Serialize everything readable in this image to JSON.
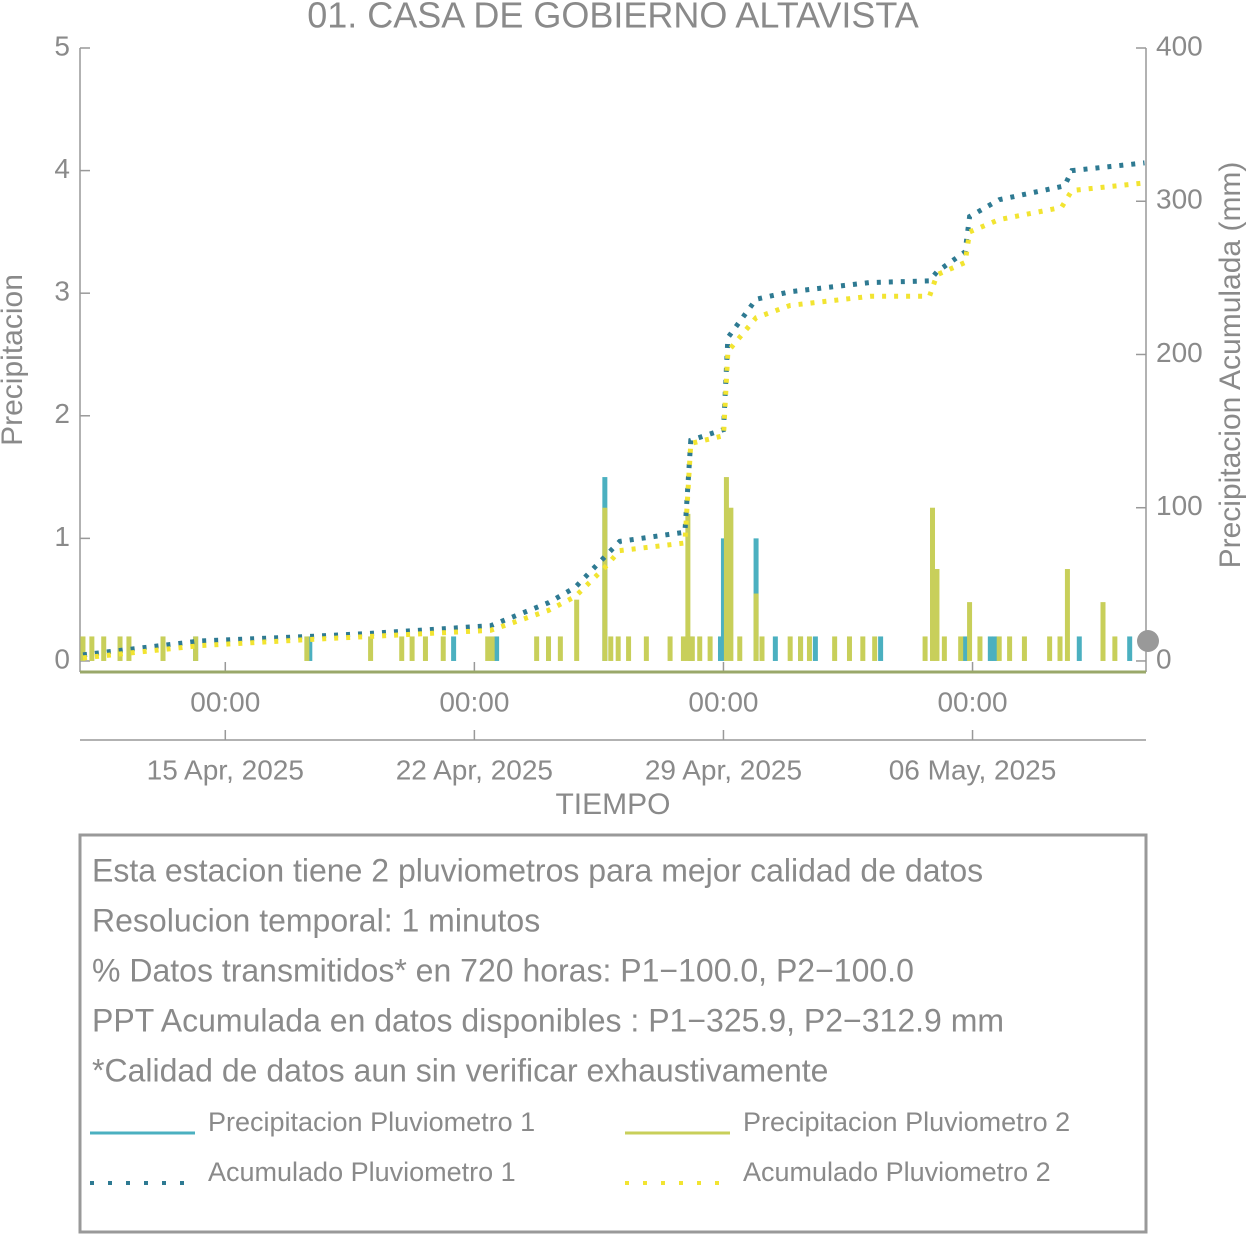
{
  "chart_data": {
    "type": "bar",
    "title": "01. CASA DE GOBIERNO ALTAVISTA",
    "x_label": "TIEMPO",
    "y_label": "Precipitacion",
    "y2_label": "Precipitacion Acumulada (mm)",
    "xlim": [
      "2025-04-10 22:00",
      "2025-05-10 21:00"
    ],
    "xticks": [
      {
        "value": "2025-04-15 00:00",
        "label": [
          "00:00",
          "15 Apr, 2025"
        ]
      },
      {
        "value": "2025-04-22 00:00",
        "label": [
          "00:00",
          "22 Apr, 2025"
        ]
      },
      {
        "value": "2025-04-29 00:00",
        "label": [
          "00:00",
          "29 Apr, 2025"
        ]
      },
      {
        "value": "2025-05-06 00:00",
        "label": [
          "00:00",
          "06 May, 2025"
        ]
      }
    ],
    "ylim": [
      -0.09,
      5
    ],
    "yticks": [
      0,
      1,
      2,
      3,
      4,
      5
    ],
    "y2lim": [
      -7.2,
      400
    ],
    "y2ticks": [
      0,
      100,
      200,
      300,
      400
    ],
    "series": [
      {
        "name": "Precipitacion Pluviometro 1",
        "type": "bar",
        "color": "#4bb0c0",
        "x": [
          "2025-04-14 04:00",
          "2025-04-17 09:00",
          "2025-04-21 10:00",
          "2025-04-22 15:00",
          "2025-04-24 02:00",
          "2025-04-25 16:00",
          "2025-04-28 02:00",
          "2025-04-28 22:00",
          "2025-04-29 00:00",
          "2025-04-29 22:00",
          "2025-04-30 11:00",
          "2025-05-01 04:00",
          "2025-05-01 14:00",
          "2025-05-03 10:00",
          "2025-05-05 19:00",
          "2025-05-06 12:00",
          "2025-05-06 15:00",
          "2025-05-09 00:00",
          "2025-05-10 10:00"
        ],
        "values": [
          0.2,
          0.2,
          0.2,
          0.2,
          0.2,
          1.5,
          0.2,
          0.2,
          1.0,
          1.0,
          0.2,
          0.2,
          0.2,
          0.2,
          0.2,
          0.2,
          0.2,
          0.2,
          0.2
        ]
      },
      {
        "name": "Precipitacion Pluviometro 2",
        "type": "bar",
        "color": "#c8cf5a",
        "x": [
          "2025-04-11 00:00",
          "2025-04-11 06:00",
          "2025-04-11 14:00",
          "2025-04-12 01:00",
          "2025-04-12 07:00",
          "2025-04-13 06:00",
          "2025-04-14 04:00",
          "2025-04-17 07:00",
          "2025-04-19 02:00",
          "2025-04-19 23:00",
          "2025-04-20 06:00",
          "2025-04-20 15:00",
          "2025-04-21 03:00",
          "2025-04-22 09:00",
          "2025-04-22 12:00",
          "2025-04-23 18:00",
          "2025-04-24 02:00",
          "2025-04-24 10:00",
          "2025-04-24 21:00",
          "2025-04-25 16:00",
          "2025-04-25 20:00",
          "2025-04-26 01:00",
          "2025-04-26 08:00",
          "2025-04-26 20:00",
          "2025-04-27 12:00",
          "2025-04-27 21:00",
          "2025-04-28 00:00",
          "2025-04-28 03:00",
          "2025-04-28 08:00",
          "2025-04-28 15:00",
          "2025-04-29 02:00",
          "2025-04-29 05:00",
          "2025-04-29 11:00",
          "2025-04-29 22:00",
          "2025-04-30 02:00",
          "2025-04-30 21:00",
          "2025-05-01 04:00",
          "2025-05-01 10:00",
          "2025-05-02 03:00",
          "2025-05-02 13:00",
          "2025-05-02 22:00",
          "2025-05-03 06:00",
          "2025-05-04 16:00",
          "2025-05-04 21:00",
          "2025-05-05 00:00",
          "2025-05-05 05:00",
          "2025-05-05 16:00",
          "2025-05-05 22:00",
          "2025-05-06 05:00",
          "2025-05-06 18:00",
          "2025-05-07 01:00",
          "2025-05-07 11:00",
          "2025-05-08 04:00",
          "2025-05-08 11:00",
          "2025-05-08 16:00",
          "2025-05-09 16:00",
          "2025-05-10 00:00"
        ],
        "values": [
          0.2,
          0.2,
          0.2,
          0.2,
          0.2,
          0.2,
          0.2,
          0.2,
          0.2,
          0.2,
          0.2,
          0.2,
          0.2,
          0.2,
          0.2,
          0.2,
          0.2,
          0.2,
          0.5,
          1.25,
          0.2,
          0.2,
          0.2,
          0.2,
          0.2,
          0.2,
          1.2,
          0.2,
          0.2,
          0.2,
          1.5,
          1.25,
          0.2,
          0.55,
          0.2,
          0.2,
          0.2,
          0.2,
          0.2,
          0.2,
          0.2,
          0.2,
          0.2,
          1.25,
          0.75,
          0.2,
          0.2,
          0.48,
          0.2,
          0.2,
          0.2,
          0.2,
          0.2,
          0.2,
          0.75,
          0.48,
          0.2
        ]
      },
      {
        "name": "Acumulado Pluviometro 1",
        "type": "line",
        "axis": "y2",
        "color": "#2e7a92",
        "x": [
          "2025-04-11 00:00",
          "2025-04-14 07:00",
          "2025-04-17 09:00",
          "2025-04-19 02:00",
          "2025-04-22 11:00",
          "2025-04-24 02:00",
          "2025-04-24 20:00",
          "2025-04-25 16:00",
          "2025-04-26 02:00",
          "2025-04-27 22:00",
          "2025-04-28 02:00",
          "2025-04-29 00:00",
          "2025-04-29 03:00",
          "2025-04-29 22:00",
          "2025-04-30 21:00",
          "2025-05-03 03:00",
          "2025-05-04 19:00",
          "2025-05-05 00:00",
          "2025-05-05 19:00",
          "2025-05-05 22:00",
          "2025-05-06 18:00",
          "2025-05-08 14:00",
          "2025-05-08 19:00",
          "2025-05-10 20:00"
        ],
        "values": [
          4,
          13,
          16,
          18,
          23,
          38,
          48,
          68,
          78,
          84,
          144,
          151,
          211,
          236,
          241,
          247,
          248,
          254,
          267,
          290,
          301,
          310,
          320,
          325
        ]
      },
      {
        "name": "Acumulado Pluviometro 2",
        "type": "line",
        "axis": "y2",
        "color": "#f2e431",
        "x": [
          "2025-04-11 00:00",
          "2025-04-14 07:00",
          "2025-04-17 09:00",
          "2025-04-22 11:00",
          "2025-04-24 02:00",
          "2025-04-24 20:00",
          "2025-04-25 16:00",
          "2025-04-26 02:00",
          "2025-04-27 22:00",
          "2025-04-28 02:00",
          "2025-04-29 00:00",
          "2025-04-29 03:00",
          "2025-04-29 22:00",
          "2025-04-30 21:00",
          "2025-05-03 03:00",
          "2025-05-04 19:00",
          "2025-05-05 00:00",
          "2025-05-05 19:00",
          "2025-05-05 22:00",
          "2025-05-06 18:00",
          "2025-05-08 12:00",
          "2025-05-08 19:00",
          "2025-05-10 20:00"
        ],
        "values": [
          2,
          10,
          14,
          20,
          33,
          42,
          61,
          72,
          77,
          142,
          147,
          202,
          224,
          232,
          238,
          238,
          252,
          260,
          280,
          288,
          296,
          307,
          312
        ]
      }
    ],
    "annotations": [
      "Esta estacion tiene 2 pluviometros para mejor calidad de datos",
      "Resolucion temporal: 1 minutos",
      "% Datos transmitidos* en 720 horas: P1−100.0, P2−100.0",
      "PPT Acumulada en datos disponibles : P1−325.9, P2−312.9 mm",
      "*Calidad de datos aun sin verificar exhaustivamente"
    ]
  }
}
